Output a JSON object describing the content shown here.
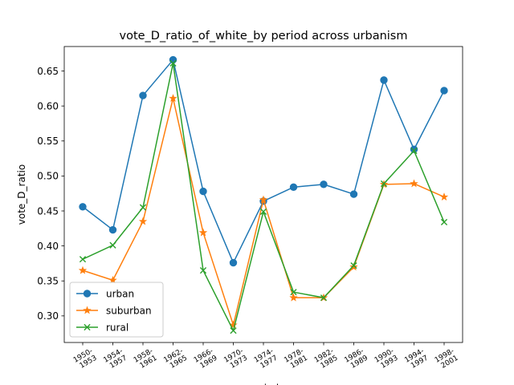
{
  "chart_data": {
    "type": "line",
    "title": "vote_D_ratio_of_white_by period across urbanism",
    "xlabel": "period",
    "ylabel": "vote_D_ratio",
    "categories": [
      "1950-1953",
      "1954-1957",
      "1958-1961",
      "1962-1965",
      "1966-1969",
      "1970-1973",
      "1974-1977",
      "1978-1981",
      "1982-1985",
      "1986-1989",
      "1990-1993",
      "1994-1997",
      "1998-2001"
    ],
    "category_lines": [
      [
        "1950-",
        "1953"
      ],
      [
        "1954-",
        "1957"
      ],
      [
        "1958-",
        "1961"
      ],
      [
        "1962-",
        "1965"
      ],
      [
        "1966-",
        "1969"
      ],
      [
        "1970-",
        "1973"
      ],
      [
        "1974-",
        "1977"
      ],
      [
        "1978-",
        "1981"
      ],
      [
        "1982-",
        "1985"
      ],
      [
        "1986-",
        "1989"
      ],
      [
        "1990-",
        "1993"
      ],
      [
        "1994-",
        "1997"
      ],
      [
        "1998-",
        "2001"
      ]
    ],
    "ylim": [
      0.262,
      0.685
    ],
    "yticks": [
      0.3,
      0.35,
      0.4,
      0.45,
      0.5,
      0.55,
      0.6,
      0.65
    ],
    "ytick_labels": [
      "0.30",
      "0.35",
      "0.40",
      "0.45",
      "0.50",
      "0.55",
      "0.60",
      "0.65"
    ],
    "grid": false,
    "legend_position": "lower-left",
    "series": [
      {
        "name": "urban",
        "color": "#1f77b4",
        "marker": "circle",
        "values": [
          0.456,
          0.423,
          0.615,
          0.666,
          0.478,
          0.376,
          0.464,
          0.484,
          0.488,
          0.474,
          0.637,
          0.538,
          0.622
        ]
      },
      {
        "name": "suburban",
        "color": "#ff7f0e",
        "marker": "star",
        "values": [
          0.365,
          0.351,
          0.435,
          0.611,
          0.419,
          0.287,
          0.466,
          0.326,
          0.326,
          0.37,
          0.488,
          0.489,
          0.47
        ]
      },
      {
        "name": "rural",
        "color": "#2ca02c",
        "marker": "x",
        "values": [
          0.381,
          0.401,
          0.455,
          0.661,
          0.365,
          0.279,
          0.449,
          0.334,
          0.326,
          0.372,
          0.489,
          0.536,
          0.434
        ]
      }
    ]
  }
}
